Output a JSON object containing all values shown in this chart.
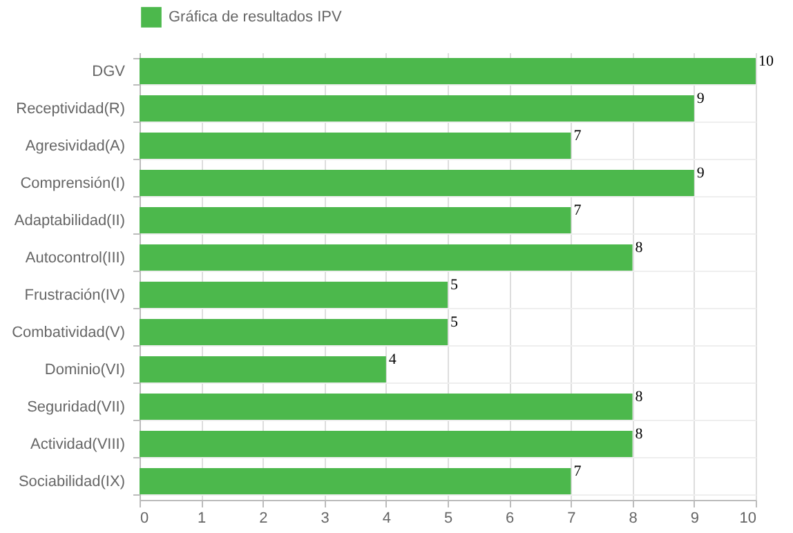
{
  "chart_data": {
    "type": "bar",
    "orientation": "horizontal",
    "categories": [
      "DGV",
      "Receptividad(R)",
      "Agresividad(A)",
      "Comprensión(I)",
      "Adaptabilidad(II)",
      "Autocontrol(III)",
      "Frustración(IV)",
      "Combatividad(V)",
      "Dominio(VI)",
      "Seguridad(VII)",
      "Actividad(VIII)",
      "Sociabilidad(IX)"
    ],
    "series": [
      {
        "name": "Gráfica de resultados IPV",
        "color": "#4cb84c",
        "values": [
          10,
          9,
          7,
          9,
          7,
          8,
          5,
          5,
          4,
          8,
          8,
          7
        ]
      }
    ],
    "xlim": [
      0,
      10
    ],
    "xticks": [
      0,
      1,
      2,
      3,
      4,
      5,
      6,
      7,
      8,
      9,
      10
    ],
    "grid": true,
    "legend": "top",
    "data_labels": true
  }
}
